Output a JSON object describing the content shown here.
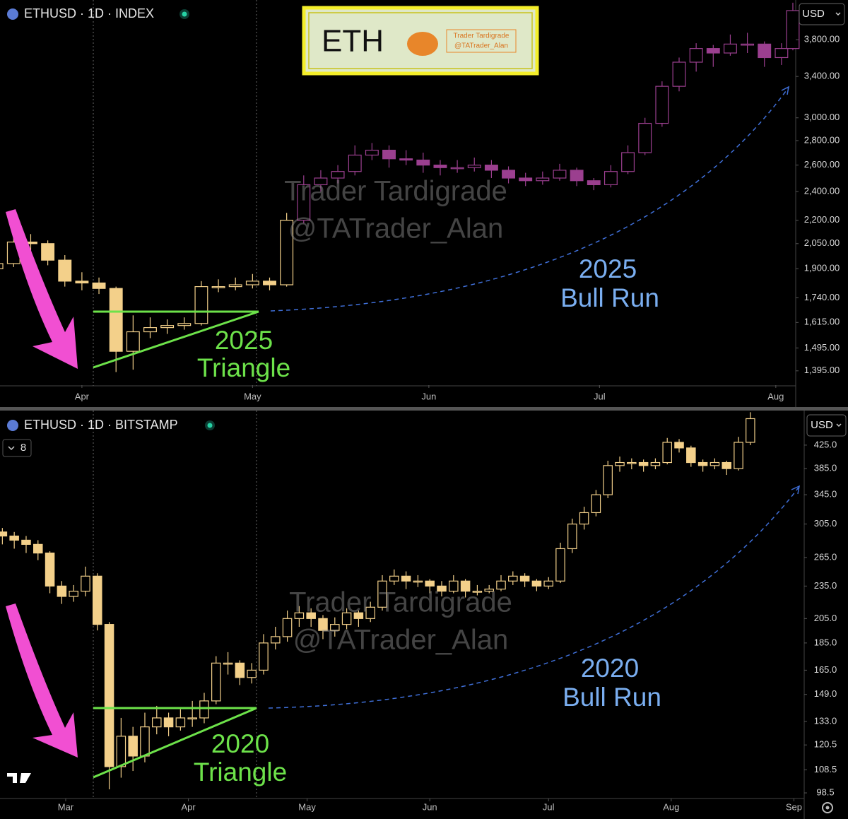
{
  "logo": {
    "text": "ETH",
    "name": "Trader Tardigrade",
    "handle": "@TATrader_Alan"
  },
  "chart_data": [
    {
      "type": "candlestick",
      "title": "ETHUSD · 1D · INDEX",
      "currency": "USD",
      "log_scale": true,
      "xlim": [
        76.6,
        216.5
      ],
      "xticks": [
        {
          "value": 91,
          "label": "Apr"
        },
        {
          "value": 121,
          "label": "May"
        },
        {
          "value": 152,
          "label": "Jun"
        },
        {
          "value": 182,
          "label": "Jul"
        },
        {
          "value": 213,
          "label": "Aug"
        }
      ],
      "ylim": [
        1336,
        4285
      ],
      "yticks": [
        {
          "value": 3800,
          "label": "3,800.00"
        },
        {
          "value": 3400,
          "label": "3,400.00"
        },
        {
          "value": 3000,
          "label": "3,000.00"
        },
        {
          "value": 2800,
          "label": "2,800.00"
        },
        {
          "value": 2600,
          "label": "2,600.00"
        },
        {
          "value": 2400,
          "label": "2,400.00"
        },
        {
          "value": 2200,
          "label": "2,200.00"
        },
        {
          "value": 2050,
          "label": "2,050.00"
        },
        {
          "value": 1900,
          "label": "1,900.00"
        },
        {
          "value": 1740,
          "label": "1,740.00"
        },
        {
          "value": 1615,
          "label": "1,615.00"
        },
        {
          "value": 1495,
          "label": "1,495.00"
        },
        {
          "value": 1395,
          "label": "1,395.00"
        }
      ],
      "series": [
        {
          "color": "#f3d08a",
          "x": [
            76,
            79,
            82,
            85,
            88,
            91,
            94,
            97,
            100,
            103,
            106,
            109,
            112,
            115,
            118,
            121,
            124,
            127
          ],
          "ohlc": [
            [
              1900,
              1990,
              1870,
              1930
            ],
            [
              1930,
              2100,
              1910,
              2060
            ],
            [
              2060,
              2110,
              2000,
              2050
            ],
            [
              2050,
              2070,
              1920,
              1950
            ],
            [
              1950,
              1980,
              1800,
              1830
            ],
            [
              1830,
              1880,
              1780,
              1820
            ],
            [
              1820,
              1850,
              1760,
              1790
            ],
            [
              1790,
              1800,
              1390,
              1480
            ],
            [
              1480,
              1650,
              1400,
              1570
            ],
            [
              1570,
              1640,
              1540,
              1590
            ],
            [
              1590,
              1630,
              1560,
              1600
            ],
            [
              1600,
              1640,
              1580,
              1610
            ],
            [
              1610,
              1830,
              1600,
              1800
            ],
            [
              1800,
              1840,
              1770,
              1800
            ],
            [
              1800,
              1850,
              1780,
              1810
            ],
            [
              1810,
              1870,
              1790,
              1830
            ],
            [
              1830,
              1850,
              1780,
              1810
            ],
            [
              1810,
              2250,
              1800,
              2200
            ]
          ]
        },
        {
          "color": "#9b3f8f",
          "x": [
            130,
            133,
            136,
            139,
            142,
            145,
            148,
            151,
            154,
            157,
            160,
            163,
            166,
            169,
            172,
            175,
            178,
            181,
            184,
            187,
            190,
            193,
            196,
            199,
            202,
            205,
            208,
            211,
            214,
            216
          ],
          "ohlc": [
            [
              2200,
              2520,
              2180,
              2450
            ],
            [
              2450,
              2560,
              2400,
              2500
            ],
            [
              2500,
              2600,
              2460,
              2550
            ],
            [
              2550,
              2760,
              2520,
              2680
            ],
            [
              2680,
              2780,
              2640,
              2720
            ],
            [
              2720,
              2760,
              2580,
              2650
            ],
            [
              2650,
              2720,
              2600,
              2640
            ],
            [
              2640,
              2700,
              2540,
              2600
            ],
            [
              2600,
              2640,
              2520,
              2580
            ],
            [
              2580,
              2640,
              2540,
              2580
            ],
            [
              2580,
              2660,
              2550,
              2600
            ],
            [
              2600,
              2640,
              2500,
              2560
            ],
            [
              2560,
              2590,
              2460,
              2500
            ],
            [
              2500,
              2540,
              2440,
              2480
            ],
            [
              2480,
              2550,
              2450,
              2500
            ],
            [
              2500,
              2610,
              2480,
              2560
            ],
            [
              2560,
              2580,
              2440,
              2480
            ],
            [
              2480,
              2500,
              2410,
              2450
            ],
            [
              2450,
              2600,
              2430,
              2550
            ],
            [
              2550,
              2760,
              2530,
              2700
            ],
            [
              2700,
              3000,
              2680,
              2950
            ],
            [
              2950,
              3350,
              2920,
              3300
            ],
            [
              3300,
              3600,
              3250,
              3550
            ],
            [
              3550,
              3760,
              3450,
              3700
            ],
            [
              3700,
              3740,
              3500,
              3650
            ],
            [
              3650,
              3860,
              3620,
              3750
            ],
            [
              3750,
              3880,
              3650,
              3750
            ],
            [
              3750,
              3780,
              3500,
              3600
            ],
            [
              3600,
              3760,
              3520,
              3700
            ],
            [
              3700,
              4250,
              3680,
              4150
            ]
          ]
        }
      ],
      "annotations": {
        "triangle_year": "2025",
        "triangle": "Triangle",
        "run_year": "2025",
        "run": "Bull Run"
      }
    },
    {
      "type": "candlestick",
      "title": "ETHUSD · 1D · BITSTAMP",
      "currency": "USD",
      "badge": "8",
      "log_scale": true,
      "xlim": [
        44.4,
        247.6
      ],
      "xticks": [
        {
          "value": 61,
          "label": "Mar"
        },
        {
          "value": 92,
          "label": "Apr"
        },
        {
          "value": 122,
          "label": "May"
        },
        {
          "value": 153,
          "label": "Jun"
        },
        {
          "value": 183,
          "label": "Jul"
        },
        {
          "value": 214,
          "label": "Aug"
        },
        {
          "value": 245,
          "label": "Sep"
        }
      ],
      "ylim": [
        96.2,
        490
      ],
      "yticks": [
        {
          "value": 425,
          "label": "425.0"
        },
        {
          "value": 385,
          "label": "385.0"
        },
        {
          "value": 345,
          "label": "345.0"
        },
        {
          "value": 305,
          "label": "305.0"
        },
        {
          "value": 265,
          "label": "265.0"
        },
        {
          "value": 235,
          "label": "235.0"
        },
        {
          "value": 205,
          "label": "205.0"
        },
        {
          "value": 185,
          "label": "185.0"
        },
        {
          "value": 165,
          "label": "165.0"
        },
        {
          "value": 149,
          "label": "149.0"
        },
        {
          "value": 133,
          "label": "133.0"
        },
        120.5,
        108.5,
        98.5
      ],
      "series": [
        {
          "color": "#f3d08a",
          "x": [
            45,
            48,
            51,
            54,
            57,
            60,
            63,
            66,
            69,
            72,
            75,
            78,
            81,
            84,
            87,
            90,
            93,
            96,
            99,
            102,
            105,
            108,
            111,
            114,
            117,
            120,
            123,
            126,
            129,
            132,
            135,
            138,
            141,
            144,
            147,
            150,
            153,
            156,
            159,
            162,
            165,
            168,
            171,
            174,
            177,
            180,
            183,
            186,
            189,
            192,
            195,
            198,
            201,
            204,
            207,
            210,
            213,
            216,
            219,
            222,
            225,
            228,
            231,
            234
          ],
          "ohlc": [
            [
              295,
              300,
              280,
              290
            ],
            [
              290,
              295,
              275,
              285
            ],
            [
              285,
              290,
              270,
              280
            ],
            [
              280,
              285,
              262,
              270
            ],
            [
              270,
              272,
              228,
              235
            ],
            [
              235,
              240,
              218,
              225
            ],
            [
              225,
              236,
              220,
              230
            ],
            [
              230,
              255,
              225,
              245
            ],
            [
              245,
              248,
              195,
              200
            ],
            [
              200,
              202,
              100,
              110
            ],
            [
              110,
              135,
              105,
              125
            ],
            [
              125,
              130,
              108,
              115
            ],
            [
              115,
              138,
              112,
              130
            ],
            [
              130,
              142,
              126,
              135
            ],
            [
              135,
              138,
              125,
              130
            ],
            [
              130,
              140,
              128,
              135
            ],
            [
              135,
              145,
              130,
              135
            ],
            [
              135,
              150,
              132,
              145
            ],
            [
              145,
              175,
              143,
              170
            ],
            [
              170,
              178,
              162,
              170
            ],
            [
              170,
              172,
              155,
              160
            ],
            [
              160,
              170,
              156,
              165
            ],
            [
              165,
              192,
              162,
              185
            ],
            [
              185,
              198,
              180,
              190
            ],
            [
              190,
              212,
              186,
              205
            ],
            [
              205,
              216,
              198,
              210
            ],
            [
              210,
              214,
              198,
              205
            ],
            [
              205,
              208,
              188,
              195
            ],
            [
              195,
              206,
              190,
              200
            ],
            [
              200,
              214,
              196,
              210
            ],
            [
              210,
              212,
              198,
              205
            ],
            [
              205,
              220,
              202,
              215
            ],
            [
              215,
              246,
              212,
              240
            ],
            [
              240,
              252,
              236,
              245
            ],
            [
              245,
              250,
              232,
              240
            ],
            [
              240,
              246,
              234,
              240
            ],
            [
              240,
              242,
              228,
              235
            ],
            [
              235,
              240,
              225,
              230
            ],
            [
              230,
              246,
              228,
              240
            ],
            [
              240,
              242,
              224,
              230
            ],
            [
              230,
              236,
              226,
              230
            ],
            [
              230,
              236,
              228,
              232
            ],
            [
              232,
              246,
              230,
              240
            ],
            [
              240,
              250,
              236,
              245
            ],
            [
              245,
              248,
              234,
              240
            ],
            [
              240,
              242,
              230,
              235
            ],
            [
              235,
              244,
              232,
              240
            ],
            [
              240,
              282,
              238,
              275
            ],
            [
              275,
              312,
              270,
              305
            ],
            [
              305,
              328,
              298,
              320
            ],
            [
              320,
              352,
              315,
              345
            ],
            [
              345,
              398,
              340,
              390
            ],
            [
              390,
              405,
              380,
              395
            ],
            [
              395,
              402,
              384,
              395
            ],
            [
              395,
              400,
              380,
              390
            ],
            [
              390,
              402,
              384,
              395
            ],
            [
              395,
              438,
              392,
              430
            ],
            [
              430,
              436,
              412,
              420
            ],
            [
              420,
              424,
              388,
              395
            ],
            [
              395,
              400,
              380,
              390
            ],
            [
              390,
              402,
              384,
              395
            ],
            [
              395,
              398,
              375,
              385
            ],
            [
              385,
              440,
              382,
              430
            ],
            [
              430,
              488,
              425,
              475
            ]
          ]
        }
      ],
      "annotations": {
        "triangle_year": "2020",
        "triangle": "Triangle",
        "run_year": "2020",
        "run": "Bull Run"
      }
    }
  ]
}
